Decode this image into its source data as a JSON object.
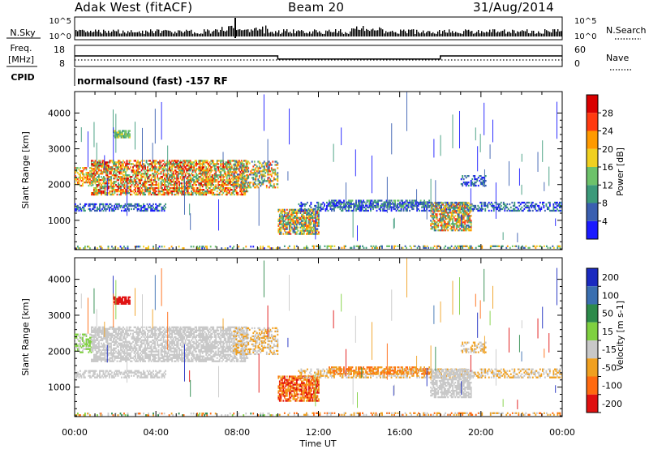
{
  "header": {
    "radar": "Adak West (fitACF)",
    "beam": "Beam 20",
    "date": "31/Aug/2014"
  },
  "panels": {
    "nsky_label": "N.Sky",
    "nsearch_label": "N.Search",
    "freq_label_1": "Freq.",
    "freq_label_2": "[MHz]",
    "cpid_label": "CPID",
    "nave_label": "Nave",
    "cpid_text": "normalsound (fast) -157 RF",
    "nsky_ticks": [
      "10^5",
      "10^0"
    ],
    "freq_ticks": [
      "18",
      "8"
    ],
    "nave_ticks": [
      "60",
      "0"
    ]
  },
  "chart_data": {
    "type": "heatmap",
    "x_ticks": [
      "00:00",
      "04:00",
      "08:00",
      "12:00",
      "16:00",
      "20:00",
      "00:00"
    ],
    "xlabel": "Time UT",
    "ylabel": "Slant Range [km]",
    "ylim": [
      180,
      4600
    ],
    "y_ticks": [
      1000,
      2000,
      3000,
      4000
    ],
    "x_range_hours": [
      0,
      24
    ],
    "frequency_mhz": [
      {
        "start_h": 0,
        "end_h": 10,
        "value": 13
      },
      {
        "start_h": 10,
        "end_h": 18,
        "value": 11.5
      },
      {
        "start_h": 18,
        "end_h": 24,
        "value": 13
      }
    ],
    "power_scale": {
      "label": "Power [dB]",
      "ticks": [
        4,
        8,
        12,
        16,
        20,
        24,
        28
      ],
      "colors": [
        "#1a1aff",
        "#3a5fb0",
        "#3c9a7a",
        "#6dc26a",
        "#f0d020",
        "#ff9a00",
        "#ff3a10",
        "#d90000"
      ]
    },
    "velocity_scale": {
      "label": "Velocity [m s-1]",
      "ticks": [
        200,
        100,
        50,
        15,
        -15,
        -50,
        -100,
        -200
      ],
      "colors": [
        "#1a2ac0",
        "#3a6fb0",
        "#2c8a4a",
        "#7fd040",
        "#c8c8c8",
        "#f0a020",
        "#ff6a10",
        "#e01010"
      ]
    }
  }
}
